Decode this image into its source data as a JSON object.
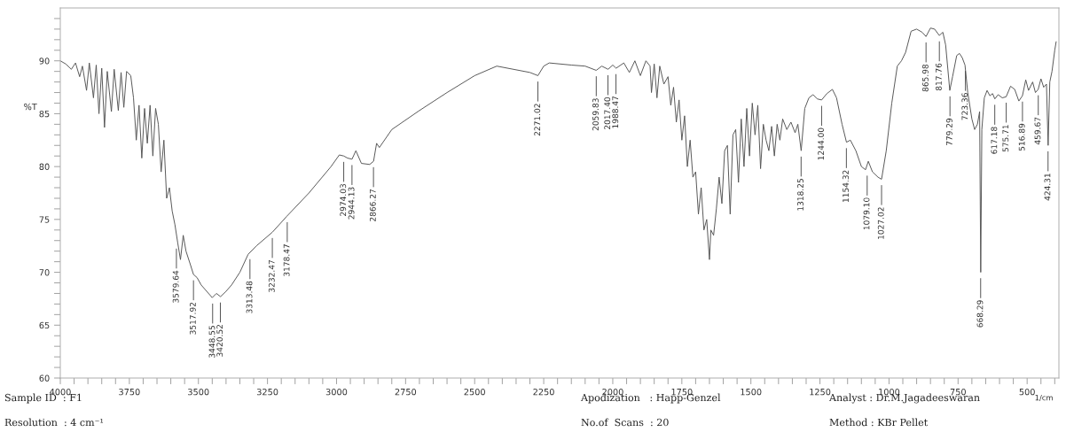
{
  "chart_data": {
    "type": "line",
    "ylabel": "%T",
    "xlabel": "1/cm",
    "x": [
      4000,
      3980,
      3960,
      3945,
      3930,
      3920,
      3905,
      3895,
      3880,
      3870,
      3860,
      3850,
      3840,
      3830,
      3815,
      3805,
      3790,
      3780,
      3770,
      3760,
      3745,
      3735,
      3725,
      3715,
      3705,
      3695,
      3685,
      3675,
      3665,
      3655,
      3645,
      3635,
      3625,
      3615,
      3605,
      3595,
      3585,
      3575,
      3565,
      3555,
      3545,
      3530,
      3518,
      3505,
      3490,
      3470,
      3450,
      3435,
      3420,
      3400,
      3380,
      3350,
      3320,
      3290,
      3232,
      3180,
      3100,
      3020,
      2990,
      2974,
      2960,
      2944,
      2930,
      2910,
      2880,
      2866,
      2855,
      2845,
      2800,
      2700,
      2600,
      2500,
      2420,
      2300,
      2271,
      2250,
      2230,
      2150,
      2100,
      2060,
      2040,
      2017,
      2000,
      1988,
      1960,
      1940,
      1920,
      1900,
      1880,
      1865,
      1860,
      1850,
      1840,
      1830,
      1815,
      1800,
      1790,
      1780,
      1770,
      1760,
      1750,
      1740,
      1730,
      1720,
      1710,
      1700,
      1690,
      1680,
      1670,
      1660,
      1650,
      1645,
      1635,
      1625,
      1615,
      1605,
      1595,
      1585,
      1575,
      1565,
      1555,
      1545,
      1535,
      1525,
      1515,
      1505,
      1495,
      1485,
      1475,
      1465,
      1455,
      1445,
      1435,
      1425,
      1415,
      1405,
      1395,
      1385,
      1370,
      1355,
      1340,
      1330,
      1318,
      1305,
      1290,
      1275,
      1260,
      1244,
      1225,
      1205,
      1190,
      1170,
      1154,
      1140,
      1120,
      1100,
      1085,
      1075,
      1060,
      1040,
      1027,
      1010,
      990,
      970,
      955,
      940,
      920,
      900,
      880,
      866,
      850,
      835,
      818,
      805,
      795,
      780,
      770,
      755,
      745,
      735,
      725,
      715,
      700,
      690,
      680,
      672,
      668,
      664,
      655,
      645,
      635,
      625,
      617,
      605,
      590,
      576,
      560,
      545,
      530,
      517,
      505,
      495,
      480,
      470,
      460,
      450,
      440,
      430,
      424,
      418,
      410,
      400,
      395
    ],
    "series": [
      {
        "color": "#555555",
        "values": [
          90,
          89.7,
          89.2,
          89.8,
          88.5,
          89.5,
          87.2,
          89.8,
          86.5,
          89.6,
          85.0,
          89.3,
          83.7,
          89.0,
          85.2,
          89.2,
          85.3,
          88.9,
          85.6,
          89.0,
          88.6,
          86.5,
          82.5,
          85.8,
          80.8,
          85.5,
          82.2,
          85.8,
          81.0,
          85.5,
          84.0,
          79.5,
          82.5,
          77.0,
          78.0,
          75.8,
          74.5,
          72.8,
          71.2,
          73.5,
          72.0,
          70.8,
          69.8,
          69.5,
          68.8,
          68.2,
          67.6,
          68.0,
          67.7,
          68.2,
          68.8,
          70.0,
          71.7,
          72.5,
          73.8,
          75.3,
          77.5,
          80.0,
          81.1,
          81.0,
          80.8,
          80.7,
          81.5,
          80.3,
          80.2,
          80.5,
          82.2,
          81.8,
          83.5,
          85.3,
          87.0,
          88.6,
          89.5,
          88.9,
          88.6,
          89.5,
          89.8,
          89.6,
          89.5,
          89.1,
          89.5,
          89.2,
          89.6,
          89.3,
          89.8,
          88.9,
          90.0,
          88.6,
          90.0,
          89.5,
          87.0,
          89.7,
          86.5,
          89.5,
          87.8,
          88.5,
          85.8,
          87.5,
          84.2,
          86.3,
          82.5,
          84.8,
          80.0,
          82.5,
          79.0,
          79.5,
          75.5,
          78.0,
          74.0,
          75.0,
          71.2,
          74.0,
          73.5,
          76.0,
          79.0,
          76.5,
          81.5,
          82.0,
          75.5,
          83.0,
          83.5,
          78.5,
          84.5,
          80.0,
          85.5,
          81.0,
          86.0,
          83.0,
          85.8,
          79.8,
          84.0,
          82.5,
          81.5,
          83.8,
          81.0,
          84.0,
          82.5,
          84.5,
          83.5,
          84.2,
          83.2,
          84.0,
          81.5,
          85.5,
          86.5,
          86.8,
          86.4,
          86.3,
          86.9,
          87.3,
          86.5,
          84.0,
          82.3,
          82.5,
          81.5,
          80.0,
          79.7,
          80.5,
          79.5,
          79.0,
          78.8,
          81.5,
          86.0,
          89.5,
          90.0,
          90.8,
          92.8,
          93.0,
          92.7,
          92.3,
          93.1,
          93.0,
          92.4,
          92.7,
          91.5,
          87.2,
          88.5,
          90.5,
          90.7,
          90.3,
          89.6,
          87.0,
          84.5,
          83.5,
          84.0,
          85.2,
          70.0,
          83.5,
          86.5,
          87.2,
          86.7,
          86.9,
          86.4,
          86.8,
          86.5,
          86.6,
          87.6,
          87.3,
          86.2,
          86.7,
          88.2,
          87.2,
          88.0,
          87.0,
          87.3,
          88.3,
          87.5,
          87.8,
          82.0,
          88.0,
          89.0,
          91.0,
          91.8
        ]
      }
    ],
    "xlim": [
      4000,
      385
    ],
    "ylim": [
      60,
      95
    ],
    "xticks": [
      {
        "value": 4000,
        "label": "4000"
      },
      {
        "value": 3950,
        "label": null
      },
      {
        "value": 3900,
        "label": null
      },
      {
        "value": 3850,
        "label": null
      },
      {
        "value": 3800,
        "label": null
      },
      {
        "value": 3750,
        "label": "3750"
      },
      {
        "value": 3700,
        "label": null
      },
      {
        "value": 3650,
        "label": null
      },
      {
        "value": 3600,
        "label": null
      },
      {
        "value": 3550,
        "label": null
      },
      {
        "value": 3500,
        "label": "3500"
      },
      {
        "value": 3450,
        "label": null
      },
      {
        "value": 3400,
        "label": null
      },
      {
        "value": 3350,
        "label": null
      },
      {
        "value": 3300,
        "label": null
      },
      {
        "value": 3250,
        "label": "3250"
      },
      {
        "value": 3200,
        "label": null
      },
      {
        "value": 3150,
        "label": null
      },
      {
        "value": 3100,
        "label": null
      },
      {
        "value": 3050,
        "label": null
      },
      {
        "value": 3000,
        "label": "3000"
      },
      {
        "value": 2950,
        "label": null
      },
      {
        "value": 2900,
        "label": null
      },
      {
        "value": 2850,
        "label": null
      },
      {
        "value": 2800,
        "label": null
      },
      {
        "value": 2750,
        "label": "2750"
      },
      {
        "value": 2700,
        "label": null
      },
      {
        "value": 2650,
        "label": null
      },
      {
        "value": 2600,
        "label": null
      },
      {
        "value": 2550,
        "label": null
      },
      {
        "value": 2500,
        "label": "2500"
      },
      {
        "value": 2450,
        "label": null
      },
      {
        "value": 2400,
        "label": null
      },
      {
        "value": 2350,
        "label": null
      },
      {
        "value": 2300,
        "label": null
      },
      {
        "value": 2250,
        "label": "2250"
      },
      {
        "value": 2200,
        "label": null
      },
      {
        "value": 2150,
        "label": null
      },
      {
        "value": 2100,
        "label": null
      },
      {
        "value": 2050,
        "label": null
      },
      {
        "value": 2000,
        "label": "2000"
      },
      {
        "value": 1950,
        "label": null
      },
      {
        "value": 1900,
        "label": null
      },
      {
        "value": 1850,
        "label": null
      },
      {
        "value": 1800,
        "label": null
      },
      {
        "value": 1750,
        "label": "1750"
      },
      {
        "value": 1700,
        "label": null
      },
      {
        "value": 1650,
        "label": null
      },
      {
        "value": 1600,
        "label": null
      },
      {
        "value": 1550,
        "label": null
      },
      {
        "value": 1500,
        "label": "1500"
      },
      {
        "value": 1450,
        "label": null
      },
      {
        "value": 1400,
        "label": null
      },
      {
        "value": 1350,
        "label": null
      },
      {
        "value": 1300,
        "label": null
      },
      {
        "value": 1250,
        "label": "1250"
      },
      {
        "value": 1200,
        "label": null
      },
      {
        "value": 1150,
        "label": null
      },
      {
        "value": 1100,
        "label": null
      },
      {
        "value": 1050,
        "label": null
      },
      {
        "value": 1000,
        "label": "1000"
      },
      {
        "value": 950,
        "label": null
      },
      {
        "value": 900,
        "label": null
      },
      {
        "value": 850,
        "label": null
      },
      {
        "value": 800,
        "label": null
      },
      {
        "value": 750,
        "label": "750"
      },
      {
        "value": 700,
        "label": null
      },
      {
        "value": 650,
        "label": null
      },
      {
        "value": 600,
        "label": null
      },
      {
        "value": 550,
        "label": null
      },
      {
        "value": 500,
        "label": "500"
      },
      {
        "value": 450,
        "label": null
      },
      {
        "value": 400,
        "label": null
      }
    ],
    "yticks": [
      60,
      {
        "value": 61,
        "label": null
      },
      {
        "value": 62,
        "label": null
      },
      {
        "value": 63,
        "label": null
      },
      {
        "value": 64,
        "label": null
      },
      65,
      {
        "value": 66,
        "label": null
      },
      {
        "value": 67,
        "label": null
      },
      {
        "value": 68,
        "label": null
      },
      {
        "value": 69,
        "label": null
      },
      70,
      {
        "value": 71,
        "label": null
      },
      {
        "value": 72,
        "label": null
      },
      {
        "value": 73,
        "label": null
      },
      {
        "value": 74,
        "label": null
      },
      75,
      {
        "value": 76,
        "label": null
      },
      {
        "value": 77,
        "label": null
      },
      {
        "value": 78,
        "label": null
      },
      {
        "value": 79,
        "label": null
      },
      80,
      {
        "value": 81,
        "label": null
      },
      {
        "value": 82,
        "label": null
      },
      {
        "value": 83,
        "label": null
      },
      {
        "value": 84,
        "label": null
      },
      85,
      {
        "value": 86,
        "label": null
      },
      {
        "value": 87,
        "label": null
      },
      {
        "value": 88,
        "label": null
      },
      {
        "value": 89,
        "label": null
      },
      90,
      {
        "value": 91,
        "label": null
      },
      {
        "value": 92,
        "label": null
      },
      {
        "value": 93,
        "label": null
      },
      {
        "value": 94,
        "label": null
      }
    ],
    "grid": false,
    "marker": "none",
    "line_style": "solid",
    "annotations": [
      {
        "text": "3579.64",
        "x": 3579.64,
        "y": 72.8
      },
      {
        "text": "3517.92",
        "x": 3517.92,
        "y": 69.8
      },
      {
        "text": "3448.55",
        "x": 3448.55,
        "y": 67.6
      },
      {
        "text": "3420.52",
        "x": 3420.52,
        "y": 67.7
      },
      {
        "text": "3313.48",
        "x": 3313.48,
        "y": 71.8
      },
      {
        "text": "3232.47",
        "x": 3232.47,
        "y": 73.8
      },
      {
        "text": "3178.47",
        "x": 3178.47,
        "y": 75.3
      },
      {
        "text": "2974.03",
        "x": 2974.03,
        "y": 81.0
      },
      {
        "text": "2944.13",
        "x": 2944.13,
        "y": 80.7
      },
      {
        "text": "2866.27",
        "x": 2866.27,
        "y": 80.5
      },
      {
        "text": "2271.02",
        "x": 2271.02,
        "y": 88.6
      },
      {
        "text": "2059.83",
        "x": 2059.83,
        "y": 89.1
      },
      {
        "text": "2017.40",
        "x": 2017.4,
        "y": 89.2
      },
      {
        "text": "1988.47",
        "x": 1988.47,
        "y": 89.3
      },
      {
        "text": "1318.25",
        "x": 1318.25,
        "y": 81.5
      },
      {
        "text": "1244.00",
        "x": 1244.0,
        "y": 86.3
      },
      {
        "text": "1154.32",
        "x": 1154.32,
        "y": 82.3
      },
      {
        "text": "1079.10",
        "x": 1079.1,
        "y": 79.7
      },
      {
        "text": "1027.02",
        "x": 1027.02,
        "y": 78.8
      },
      {
        "text": "865.98",
        "x": 865.98,
        "y": 92.3
      },
      {
        "text": "817.76",
        "x": 817.76,
        "y": 92.4
      },
      {
        "text": "779.29",
        "x": 779.29,
        "y": 87.2
      },
      {
        "text": "723.36",
        "x": 723.36,
        "y": 89.6
      },
      {
        "text": "668.29",
        "x": 668.29,
        "y": 70.0
      },
      {
        "text": "617.18",
        "x": 617.18,
        "y": 86.4
      },
      {
        "text": "575.71",
        "x": 575.71,
        "y": 86.6
      },
      {
        "text": "516.89",
        "x": 516.89,
        "y": 86.7
      },
      {
        "text": "459.67",
        "x": 459.67,
        "y": 87.3
      },
      {
        "text": "424.31",
        "x": 424.31,
        "y": 82.0
      },
      "Sample ID  : F1",
      "Resolution  : 4 cm⁻¹",
      "Apodization   : Happ-Genzel",
      "No.of  Scans  : 20",
      "Analyst : Dr.M.Jagadeeswaran",
      "Method : KBr Pellet"
    ]
  }
}
